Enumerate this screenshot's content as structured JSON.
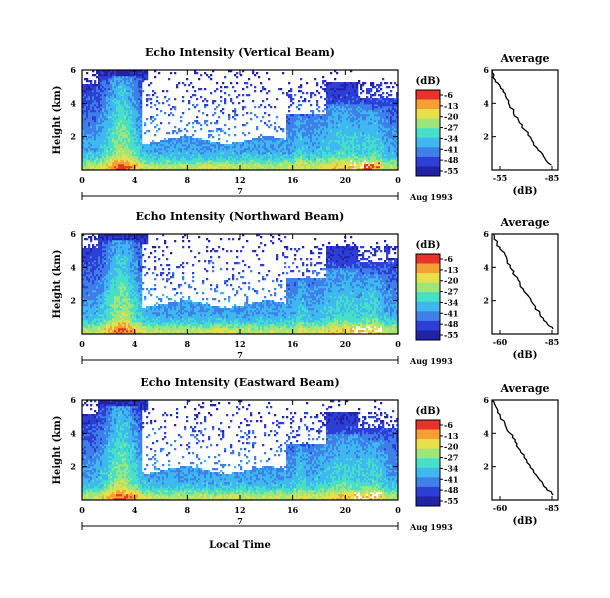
{
  "figure": {
    "date_label": "Aug 1993",
    "x_axis_label": "Local Time",
    "unit_label": "(dB)",
    "colorbar_ticks": [
      "-6",
      "-13",
      "-20",
      "-27",
      "-34",
      "-41",
      "-48",
      "-55"
    ],
    "colors": {
      "scale": [
        "#2222a6",
        "#2d3fd6",
        "#3f7fe8",
        "#3fb8f0",
        "#46e0c8",
        "#9ee67a",
        "#e8e04a",
        "#f5a032",
        "#e8322a"
      ]
    }
  },
  "chart_data": [
    {
      "type": "heatmap",
      "title": "Echo Intensity (Vertical Beam)",
      "ylabel": "Height (km)",
      "x_ticks": [
        "0",
        "4",
        "8",
        "12",
        "16",
        "20",
        "0"
      ],
      "x_day_label": "7",
      "y_ticks": [
        "6",
        "4",
        "2"
      ],
      "ylim": [
        0,
        6
      ],
      "xlim": [
        0,
        24
      ],
      "value_range_db": [
        -55,
        -6
      ]
    },
    {
      "type": "line",
      "title": "Average",
      "xlabel": "(dB)",
      "x_ticks": [
        "-55",
        "-85"
      ],
      "y_ticks": [
        "6",
        "4",
        "2"
      ],
      "xlim": [
        -50,
        -90
      ],
      "ylim": [
        0,
        6
      ],
      "series": [
        {
          "x": [
            -50,
            -52,
            -55,
            -58,
            -60,
            -63,
            -66,
            -70,
            -74,
            -78,
            -82,
            -86
          ],
          "y": [
            6.0,
            5.4,
            5.0,
            4.6,
            4.0,
            3.5,
            3.0,
            2.4,
            1.8,
            1.2,
            0.7,
            0.3
          ]
        }
      ]
    },
    {
      "type": "heatmap",
      "title": "Echo Intensity (Northward Beam)",
      "ylabel": "Height (km)",
      "x_ticks": [
        "0",
        "4",
        "8",
        "12",
        "16",
        "20",
        "0"
      ],
      "x_day_label": "7",
      "y_ticks": [
        "6",
        "4",
        "2"
      ],
      "ylim": [
        0,
        6
      ],
      "xlim": [
        0,
        24
      ],
      "value_range_db": [
        -55,
        -6
      ]
    },
    {
      "type": "line",
      "title": "Average",
      "xlabel": "(dB)",
      "x_ticks": [
        "-60",
        "-85"
      ],
      "y_ticks": [
        "6",
        "4",
        "2"
      ],
      "xlim": [
        -50,
        -90
      ],
      "ylim": [
        0,
        6
      ],
      "series": [
        {
          "x": [
            -51,
            -53,
            -56,
            -59,
            -61,
            -64,
            -67,
            -71,
            -75,
            -79,
            -83,
            -87
          ],
          "y": [
            6.0,
            5.4,
            5.0,
            4.5,
            4.0,
            3.5,
            3.0,
            2.4,
            1.8,
            1.2,
            0.7,
            0.3
          ]
        }
      ]
    },
    {
      "type": "heatmap",
      "title": "Echo Intensity (Eastward Beam)",
      "ylabel": "Height (km)",
      "x_ticks": [
        "0",
        "4",
        "8",
        "12",
        "16",
        "20",
        "0"
      ],
      "x_day_label": "7",
      "y_ticks": [
        "6",
        "4",
        "2"
      ],
      "ylim": [
        0,
        6
      ],
      "xlim": [
        0,
        24
      ],
      "value_range_db": [
        -55,
        -6
      ]
    },
    {
      "type": "line",
      "title": "Average",
      "xlabel": "(dB)",
      "x_ticks": [
        "-60",
        "-85"
      ],
      "y_ticks": [
        "6",
        "4",
        "2"
      ],
      "xlim": [
        -50,
        -90
      ],
      "ylim": [
        0,
        6
      ],
      "series": [
        {
          "x": [
            -50,
            -53,
            -55,
            -58,
            -61,
            -64,
            -67,
            -71,
            -75,
            -79,
            -83,
            -87
          ],
          "y": [
            6.0,
            5.5,
            5.0,
            4.5,
            4.0,
            3.5,
            3.0,
            2.4,
            1.8,
            1.2,
            0.7,
            0.3
          ]
        }
      ]
    }
  ]
}
